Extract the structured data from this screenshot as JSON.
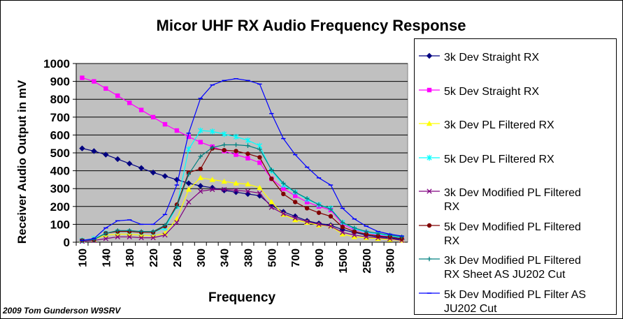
{
  "chart_data": {
    "type": "line",
    "title": "Micor UHF RX Audio Frequency Response",
    "xlabel": "Frequency",
    "ylabel": "Receiver Audio Output in mV",
    "ylim": [
      0,
      1000
    ],
    "y_ticks": [
      0,
      100,
      200,
      300,
      400,
      500,
      600,
      700,
      800,
      900,
      1000
    ],
    "grid": true,
    "legend_position": "right",
    "x": [
      100,
      120,
      140,
      160,
      180,
      200,
      220,
      240,
      260,
      280,
      300,
      320,
      340,
      360,
      380,
      400,
      500,
      600,
      700,
      800,
      900,
      1000,
      1500,
      2000,
      2500,
      3000,
      3500,
      4000
    ],
    "x_tick_labels": [
      "100",
      "140",
      "180",
      "220",
      "260",
      "300",
      "340",
      "380",
      "500",
      "700",
      "900",
      "1500",
      "2500",
      "3500"
    ],
    "series": [
      {
        "name": "3k Dev Straight RX",
        "color": "#000080",
        "marker": "diamond",
        "values": [
          525,
          510,
          490,
          465,
          440,
          415,
          390,
          370,
          350,
          330,
          315,
          305,
          290,
          280,
          270,
          260,
          205,
          170,
          145,
          120,
          105,
          95,
          70,
          55,
          40,
          30,
          25,
          15
        ]
      },
      {
        "name": "5k Dev Straight RX",
        "color": "#ff00ff",
        "marker": "square",
        "values": [
          920,
          900,
          860,
          820,
          780,
          740,
          700,
          660,
          625,
          590,
          560,
          535,
          510,
          490,
          470,
          445,
          355,
          300,
          260,
          225,
          200,
          180,
          100,
          70,
          55,
          40,
          30,
          20
        ]
      },
      {
        "name": "3k Dev PL Filtered RX",
        "color": "#ffff00",
        "marker": "triangle",
        "values": [
          10,
          15,
          40,
          45,
          45,
          40,
          35,
          50,
          130,
          295,
          360,
          350,
          340,
          330,
          325,
          305,
          225,
          155,
          125,
          110,
          95,
          90,
          45,
          30,
          25,
          20,
          15,
          10
        ]
      },
      {
        "name": "5k Dev PL Filtered RX",
        "color": "#00ffff",
        "marker": "star",
        "values": [
          10,
          20,
          50,
          60,
          60,
          55,
          55,
          80,
          200,
          520,
          625,
          620,
          605,
          590,
          570,
          540,
          400,
          320,
          280,
          240,
          210,
          190,
          110,
          75,
          55,
          45,
          35,
          25
        ]
      },
      {
        "name": "3k Dev Modified PL Filtered RX",
        "color": "#800080",
        "marker": "x",
        "values": [
          5,
          10,
          20,
          30,
          30,
          25,
          25,
          40,
          110,
          225,
          285,
          295,
          295,
          290,
          285,
          275,
          195,
          160,
          135,
          115,
          100,
          90,
          55,
          40,
          30,
          25,
          20,
          10
        ]
      },
      {
        "name": "5k Dev Modified PL Filtered RX",
        "color": "#800000",
        "marker": "circle",
        "values": [
          10,
          15,
          50,
          60,
          60,
          55,
          55,
          90,
          210,
          390,
          410,
          525,
          515,
          510,
          495,
          475,
          355,
          270,
          225,
          190,
          165,
          145,
          85,
          60,
          45,
          35,
          30,
          20
        ]
      },
      {
        "name": "3k Dev Modified PL Filtered RX Sheet AS JU202 Cut",
        "color": "#008080",
        "marker": "plus",
        "values": [
          10,
          15,
          50,
          65,
          65,
          60,
          60,
          95,
          200,
          380,
          480,
          530,
          545,
          545,
          540,
          520,
          405,
          330,
          280,
          245,
          210,
          185,
          110,
          80,
          60,
          50,
          40,
          30
        ]
      },
      {
        "name": "5k Dev Modified PL Filter AS JU202 Cut",
        "color": "#0000ff",
        "marker": "dash",
        "values": [
          10,
          20,
          80,
          120,
          125,
          100,
          100,
          155,
          320,
          610,
          805,
          880,
          905,
          915,
          905,
          885,
          720,
          580,
          490,
          420,
          360,
          320,
          190,
          130,
          90,
          60,
          45,
          35
        ]
      }
    ],
    "legend_labels": [
      [
        "3k Dev Straight RX"
      ],
      [
        "5k Dev Straight RX"
      ],
      [
        "3k Dev PL Filtered RX"
      ],
      [
        "5k Dev PL Filtered RX"
      ],
      [
        "3k Dev Modified PL Filtered",
        "RX"
      ],
      [
        "5k Dev Modified PL Filtered",
        "RX"
      ],
      [
        "3k Dev Modified PL Filtered",
        "RX Sheet AS JU202 Cut"
      ],
      [
        "5k Dev Modified PL Filter AS",
        "JU202 Cut"
      ]
    ],
    "plot_bg_color": "#c0c0c0"
  },
  "footer": {
    "credit": "2009 Tom Gunderson W9SRV"
  }
}
